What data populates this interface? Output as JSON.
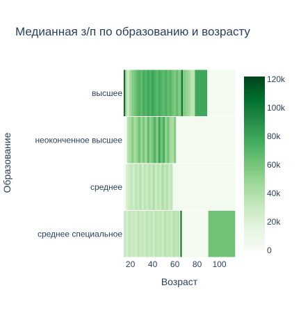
{
  "chart_data": {
    "type": "heatmap",
    "title": "Медианная з/п по образованию и возрасту",
    "xlabel": "Возраст",
    "ylabel": "Образование",
    "xlim": [
      14,
      114
    ],
    "x_ticks": [
      20,
      40,
      60,
      80,
      100
    ],
    "y_categories": [
      "высшее",
      "неоконченное высшее",
      "среднее",
      "среднее специальное"
    ],
    "colorscale": "Greens",
    "zlim": [
      0,
      122000
    ],
    "colorbar_ticks": [
      {
        "value": 0,
        "label": "0"
      },
      {
        "value": 20000,
        "label": "20k"
      },
      {
        "value": 40000,
        "label": "40k"
      },
      {
        "value": 60000,
        "label": "60k"
      },
      {
        "value": 80000,
        "label": "80k"
      },
      {
        "value": 100000,
        "label": "100k"
      },
      {
        "value": 120000,
        "label": "120k"
      }
    ],
    "rows": [
      {
        "name": "высшее",
        "cells": [
          {
            "x": [
              14,
              15
            ],
            "z": 122000
          },
          {
            "x": [
              15,
              16
            ],
            "z": 55000
          },
          {
            "x": [
              16,
              17
            ],
            "z": 40000
          },
          {
            "x": [
              17,
              19
            ],
            "z": 30000
          },
          {
            "x": [
              19,
              21
            ],
            "z": 45000
          },
          {
            "x": [
              21,
              23
            ],
            "z": 55000
          },
          {
            "x": [
              23,
              25
            ],
            "z": 60000
          },
          {
            "x": [
              25,
              27
            ],
            "z": 68000
          },
          {
            "x": [
              27,
              29
            ],
            "z": 72000
          },
          {
            "x": [
              29,
              31
            ],
            "z": 66000
          },
          {
            "x": [
              31,
              33
            ],
            "z": 75000
          },
          {
            "x": [
              33,
              35
            ],
            "z": 70000
          },
          {
            "x": [
              35,
              37
            ],
            "z": 78000
          },
          {
            "x": [
              37,
              39
            ],
            "z": 72000
          },
          {
            "x": [
              39,
              41
            ],
            "z": 80000
          },
          {
            "x": [
              41,
              43
            ],
            "z": 74000
          },
          {
            "x": [
              43,
              45
            ],
            "z": 69000
          },
          {
            "x": [
              45,
              47
            ],
            "z": 76000
          },
          {
            "x": [
              47,
              49
            ],
            "z": 71000
          },
          {
            "x": [
              49,
              51
            ],
            "z": 67000
          },
          {
            "x": [
              51,
              53
            ],
            "z": 73000
          },
          {
            "x": [
              53,
              55
            ],
            "z": 65000
          },
          {
            "x": [
              55,
              57
            ],
            "z": 70000
          },
          {
            "x": [
              57,
              59
            ],
            "z": 62000
          },
          {
            "x": [
              59,
              61
            ],
            "z": 58000
          },
          {
            "x": [
              61,
              63
            ],
            "z": 66000
          },
          {
            "x": [
              63,
              65
            ],
            "z": 55000
          },
          {
            "x": [
              65,
              66
            ],
            "z": 68000
          },
          {
            "x": [
              66,
              67
            ],
            "z": 110000
          },
          {
            "x": [
              67,
              70
            ],
            "z": 55000
          },
          {
            "x": [
              70,
              72
            ],
            "z": 50000
          },
          {
            "x": [
              72,
              74
            ],
            "z": 45000
          },
          {
            "x": [
              74,
              78
            ],
            "z": 35000
          },
          {
            "x": [
              78,
              89
            ],
            "z": 78000
          },
          {
            "x": [
              89,
              114
            ],
            "z": 3000
          }
        ]
      },
      {
        "name": "неоконченное высшее",
        "cells": [
          {
            "x": [
              14,
              17
            ],
            "z": 3000
          },
          {
            "x": [
              17,
              19
            ],
            "z": 38000
          },
          {
            "x": [
              19,
              21
            ],
            "z": 45000
          },
          {
            "x": [
              21,
              23
            ],
            "z": 55000
          },
          {
            "x": [
              23,
              25
            ],
            "z": 42000
          },
          {
            "x": [
              25,
              27
            ],
            "z": 50000
          },
          {
            "x": [
              27,
              29
            ],
            "z": 62000
          },
          {
            "x": [
              29,
              31
            ],
            "z": 48000
          },
          {
            "x": [
              31,
              33
            ],
            "z": 58000
          },
          {
            "x": [
              33,
              35
            ],
            "z": 45000
          },
          {
            "x": [
              35,
              37
            ],
            "z": 66000
          },
          {
            "x": [
              37,
              39
            ],
            "z": 52000
          },
          {
            "x": [
              39,
              41
            ],
            "z": 60000
          },
          {
            "x": [
              41,
              43
            ],
            "z": 72000
          },
          {
            "x": [
              43,
              45
            ],
            "z": 55000
          },
          {
            "x": [
              45,
              47
            ],
            "z": 78000
          },
          {
            "x": [
              47,
              49
            ],
            "z": 60000
          },
          {
            "x": [
              49,
              51
            ],
            "z": 74000
          },
          {
            "x": [
              51,
              53
            ],
            "z": 50000
          },
          {
            "x": [
              53,
              55
            ],
            "z": 62000
          },
          {
            "x": [
              55,
              57
            ],
            "z": 45000
          },
          {
            "x": [
              57,
              59
            ],
            "z": 40000
          },
          {
            "x": [
              59,
              61
            ],
            "z": 55000
          },
          {
            "x": [
              61,
              114
            ],
            "z": 3000
          }
        ]
      },
      {
        "name": "среднее",
        "cells": [
          {
            "x": [
              14,
              16
            ],
            "z": 3000
          },
          {
            "x": [
              16,
              18
            ],
            "z": 22000
          },
          {
            "x": [
              18,
              20
            ],
            "z": 28000
          },
          {
            "x": [
              20,
              22
            ],
            "z": 32000
          },
          {
            "x": [
              22,
              24
            ],
            "z": 26000
          },
          {
            "x": [
              24,
              26
            ],
            "z": 35000
          },
          {
            "x": [
              26,
              28
            ],
            "z": 30000
          },
          {
            "x": [
              28,
              30
            ],
            "z": 38000
          },
          {
            "x": [
              30,
              32
            ],
            "z": 27000
          },
          {
            "x": [
              32,
              34
            ],
            "z": 34000
          },
          {
            "x": [
              34,
              36
            ],
            "z": 29000
          },
          {
            "x": [
              36,
              38
            ],
            "z": 37000
          },
          {
            "x": [
              38,
              40
            ],
            "z": 31000
          },
          {
            "x": [
              40,
              42
            ],
            "z": 40000
          },
          {
            "x": [
              42,
              44
            ],
            "z": 28000
          },
          {
            "x": [
              44,
              46
            ],
            "z": 36000
          },
          {
            "x": [
              46,
              48
            ],
            "z": 30000
          },
          {
            "x": [
              48,
              50
            ],
            "z": 42000
          },
          {
            "x": [
              50,
              52
            ],
            "z": 33000
          },
          {
            "x": [
              52,
              54
            ],
            "z": 38000
          },
          {
            "x": [
              54,
              56
            ],
            "z": 28000
          },
          {
            "x": [
              56,
              58
            ],
            "z": 35000
          },
          {
            "x": [
              58,
              114
            ],
            "z": 3000
          }
        ]
      },
      {
        "name": "среднее специальное",
        "cells": [
          {
            "x": [
              14,
              16
            ],
            "z": 30000
          },
          {
            "x": [
              16,
              18
            ],
            "z": 24000
          },
          {
            "x": [
              18,
              20
            ],
            "z": 33000
          },
          {
            "x": [
              20,
              22
            ],
            "z": 28000
          },
          {
            "x": [
              22,
              24
            ],
            "z": 30000
          },
          {
            "x": [
              24,
              26
            ],
            "z": 26000
          },
          {
            "x": [
              26,
              28
            ],
            "z": 34000
          },
          {
            "x": [
              28,
              30
            ],
            "z": 29000
          },
          {
            "x": [
              30,
              32
            ],
            "z": 31000
          },
          {
            "x": [
              32,
              34
            ],
            "z": 27000
          },
          {
            "x": [
              34,
              36
            ],
            "z": 35000
          },
          {
            "x": [
              36,
              38
            ],
            "z": 30000
          },
          {
            "x": [
              38,
              40
            ],
            "z": 33000
          },
          {
            "x": [
              40,
              42
            ],
            "z": 28000
          },
          {
            "x": [
              42,
              44
            ],
            "z": 36000
          },
          {
            "x": [
              44,
              46
            ],
            "z": 31000
          },
          {
            "x": [
              46,
              48
            ],
            "z": 34000
          },
          {
            "x": [
              48,
              50
            ],
            "z": 29000
          },
          {
            "x": [
              50,
              52
            ],
            "z": 37000
          },
          {
            "x": [
              52,
              54
            ],
            "z": 32000
          },
          {
            "x": [
              54,
              56
            ],
            "z": 35000
          },
          {
            "x": [
              56,
              58
            ],
            "z": 30000
          },
          {
            "x": [
              58,
              60
            ],
            "z": 38000
          },
          {
            "x": [
              60,
              62
            ],
            "z": 33000
          },
          {
            "x": [
              62,
              64
            ],
            "z": 36000
          },
          {
            "x": [
              64,
              65
            ],
            "z": 20000
          },
          {
            "x": [
              65,
              66
            ],
            "z": 118000
          },
          {
            "x": [
              66,
              67
            ],
            "z": 28000
          },
          {
            "x": [
              67,
              90
            ],
            "z": 3000
          },
          {
            "x": [
              90,
              114
            ],
            "z": 62000
          }
        ]
      }
    ]
  }
}
